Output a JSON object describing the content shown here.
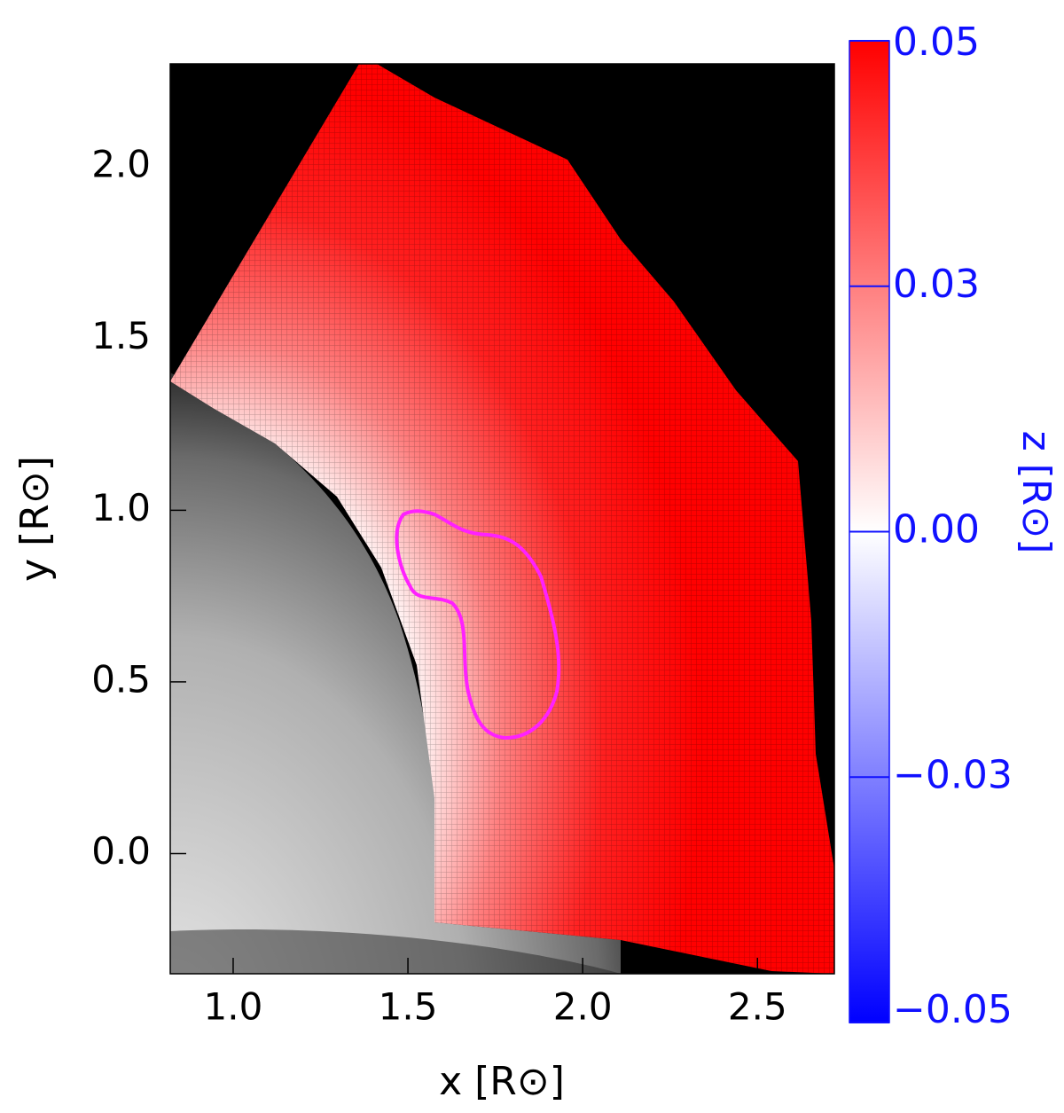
{
  "chart_data": {
    "type": "image",
    "xlabel": "x [R⊙]",
    "ylabel": "y [R⊙]",
    "xlim": [
      0.82,
      2.72
    ],
    "xticks": [
      {
        "value": 1.0,
        "label": "1.0"
      },
      {
        "value": 1.5,
        "label": "1.5"
      },
      {
        "value": 2.0,
        "label": "2.0"
      },
      {
        "value": 2.5,
        "label": "2.5"
      }
    ],
    "ylim": [
      -0.35,
      2.3
    ],
    "yticks": [
      {
        "value": 0.0,
        "label": "0.0"
      },
      {
        "value": 0.5,
        "label": "0.5"
      },
      {
        "value": 1.0,
        "label": "1.0"
      },
      {
        "value": 1.5,
        "label": "1.5"
      },
      {
        "value": 2.0,
        "label": "2.0"
      }
    ],
    "colorbar": {
      "label": "z [R⊙]",
      "lim": [
        -0.05,
        0.05
      ],
      "ticks": [
        {
          "value": 0.05,
          "label": "0.05"
        },
        {
          "value": 0.025,
          "label": "0.03"
        },
        {
          "value": 0.0,
          "label": "0.00"
        },
        {
          "value": -0.025,
          "label": "−0.03"
        },
        {
          "value": -0.05,
          "label": "−0.05"
        }
      ],
      "colors": [
        "#0000ff",
        "#ffffff",
        "#ff0000"
      ]
    }
  }
}
